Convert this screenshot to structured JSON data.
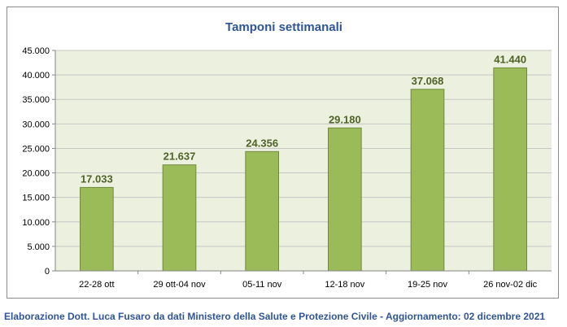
{
  "chart_data": {
    "type": "bar",
    "title": "Tamponi settimanali",
    "xlabel": "",
    "ylabel": "",
    "categories": [
      "22-28 ott",
      "29 ott-04 nov",
      "05-11 nov",
      "12-18 nov",
      "19-25 nov",
      "26 nov-02 dic"
    ],
    "values": [
      17033,
      21637,
      24356,
      29180,
      37068,
      41440
    ],
    "value_labels": [
      "17.033",
      "21.637",
      "24.356",
      "29.180",
      "37.068",
      "41.440"
    ],
    "yticks": [
      "0",
      "5.000",
      "10.000",
      "15.000",
      "20.000",
      "25.000",
      "30.000",
      "35.000",
      "40.000",
      "45.000"
    ],
    "ylim": [
      0,
      45000
    ],
    "grid": true,
    "legend": "none",
    "colors": {
      "bar": "#9bbb59",
      "bar_edge": "#71893f",
      "plot_bg": "#ebf1de",
      "title": "#2f5597",
      "data_label": "#4f6228"
    }
  },
  "caption": "Elaborazione Dott. Luca Fusaro da dati Ministero della Salute e Protezione Civile - Aggiornamento: 02 dicembre 2021"
}
